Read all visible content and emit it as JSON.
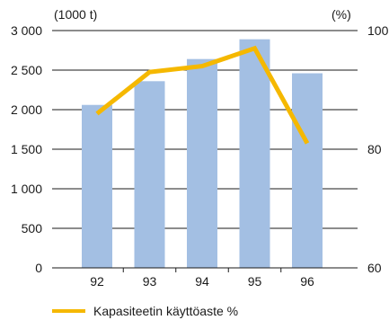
{
  "chart_data": {
    "type": "bar",
    "categories": [
      "92",
      "93",
      "94",
      "95",
      "96"
    ],
    "series": [
      {
        "type": "bar",
        "axis": "left",
        "values": [
          2060,
          2360,
          2640,
          2890,
          2460
        ],
        "color": "#a3bfe3"
      },
      {
        "type": "line",
        "axis": "right",
        "name": "Kapasiteetin käyttöaste %",
        "values": [
          86,
          93,
          94,
          97,
          81
        ],
        "color": "#f5b800"
      }
    ],
    "y_left": {
      "unit": "(1000 t)",
      "range": [
        0,
        3000
      ],
      "ticks": [
        0,
        500,
        1000,
        1500,
        2000,
        2500,
        3000
      ],
      "tick_labels": [
        "0",
        "500",
        "1 000",
        "1 500",
        "2 000",
        "2 500",
        "3 000"
      ]
    },
    "y_right": {
      "unit": "(%)",
      "range": [
        60,
        100
      ],
      "ticks": [
        60,
        80,
        100
      ],
      "tick_labels": [
        "60",
        "80",
        "100"
      ]
    },
    "grid": "horizontal",
    "legend": {
      "position": "bottom-left",
      "label": "Kapasiteetin käyttöaste %"
    }
  }
}
